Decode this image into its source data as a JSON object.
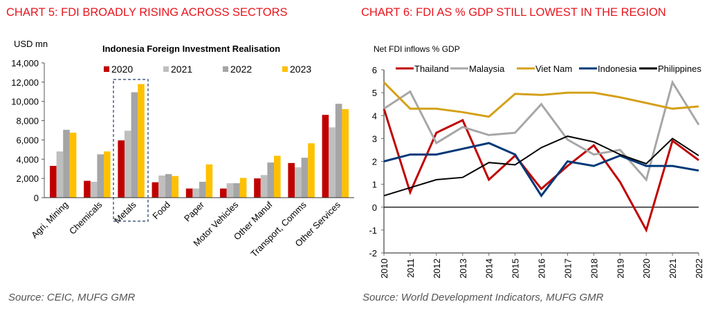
{
  "left": {
    "heading": "CHART 5: FDI BROADLY RISING ACROSS SECTORS",
    "source": "Source: CEIC, MUFG GMR"
  },
  "right": {
    "heading": "CHART 6: FDI AS % GDP STILL LOWEST IN THE REGION",
    "source": "Source: World Development Indicators, MUFG GMR"
  },
  "chart_data": [
    {
      "type": "bar",
      "title": "Indonesia Foreign Investment Realisation",
      "ylabel": "USD mn",
      "xlabel": "",
      "ylim": [
        0,
        14000
      ],
      "yticks": [
        0,
        2000,
        4000,
        6000,
        8000,
        10000,
        12000,
        14000
      ],
      "ytick_labels": [
        "0",
        "2,000",
        "4,000",
        "6,000",
        "8,000",
        "10,000",
        "12,000",
        "14,000"
      ],
      "legend_position": "top",
      "highlight_category": "Metals",
      "categories": [
        "Agri, Mining",
        "Chemicals",
        "Metals",
        "Food",
        "Paper",
        "Motor Vehicles",
        "Other Manuf",
        "Transport, Comms",
        "Other Services"
      ],
      "series": [
        {
          "name": "2020",
          "color": "#c00000",
          "values": [
            3300,
            1750,
            5950,
            1600,
            950,
            950,
            2000,
            3600,
            8600
          ]
        },
        {
          "name": "2021",
          "color": "#bfbfbf",
          "values": [
            4800,
            1650,
            6950,
            2300,
            950,
            1500,
            2350,
            3150,
            7300
          ]
        },
        {
          "name": "2022",
          "color": "#a5a5a5",
          "values": [
            7050,
            4500,
            10950,
            2450,
            1650,
            1500,
            3650,
            4150,
            9750
          ]
        },
        {
          "name": "2023",
          "color": "#ffc000",
          "values": [
            6750,
            4800,
            11800,
            2250,
            3450,
            2050,
            4350,
            5650,
            9200
          ]
        }
      ]
    },
    {
      "type": "line",
      "title": "Net FDI inflows % GDP",
      "xlabel": "",
      "ylabel": "",
      "ylim": [
        -2,
        6
      ],
      "yticks": [
        -2,
        -1,
        0,
        1,
        2,
        3,
        4,
        5,
        6
      ],
      "legend_position": "top",
      "x": [
        "2010",
        "2011",
        "2012",
        "2013",
        "2014",
        "2015",
        "2016",
        "2017",
        "2018",
        "2019",
        "2020",
        "2021",
        "2022"
      ],
      "series": [
        {
          "name": "Thailand",
          "color": "#c00000",
          "values": [
            4.3,
            0.65,
            3.25,
            3.8,
            1.2,
            2.25,
            0.8,
            1.8,
            2.7,
            1.1,
            -1.0,
            2.9,
            2.05
          ]
        },
        {
          "name": "Malaysia",
          "color": "#a6a6a6",
          "values": [
            4.3,
            5.05,
            2.8,
            3.5,
            3.15,
            3.25,
            4.5,
            2.95,
            2.3,
            2.5,
            1.2,
            5.45,
            3.6
          ]
        },
        {
          "name": "Viet Nam",
          "color": "#d4a017",
          "values": [
            5.45,
            4.3,
            4.3,
            4.15,
            3.95,
            4.95,
            4.9,
            5.0,
            5.0,
            4.8,
            4.55,
            4.3,
            4.4
          ]
        },
        {
          "name": "Indonesia",
          "color": "#003878",
          "values": [
            2.0,
            2.3,
            2.3,
            2.55,
            2.8,
            2.3,
            0.5,
            2.0,
            1.8,
            2.25,
            1.8,
            1.8,
            1.6
          ]
        },
        {
          "name": "Philippines",
          "color": "#000000",
          "values": [
            0.5,
            0.85,
            1.2,
            1.3,
            1.95,
            1.85,
            2.6,
            3.1,
            2.85,
            2.3,
            1.9,
            3.0,
            2.25
          ]
        }
      ]
    }
  ]
}
